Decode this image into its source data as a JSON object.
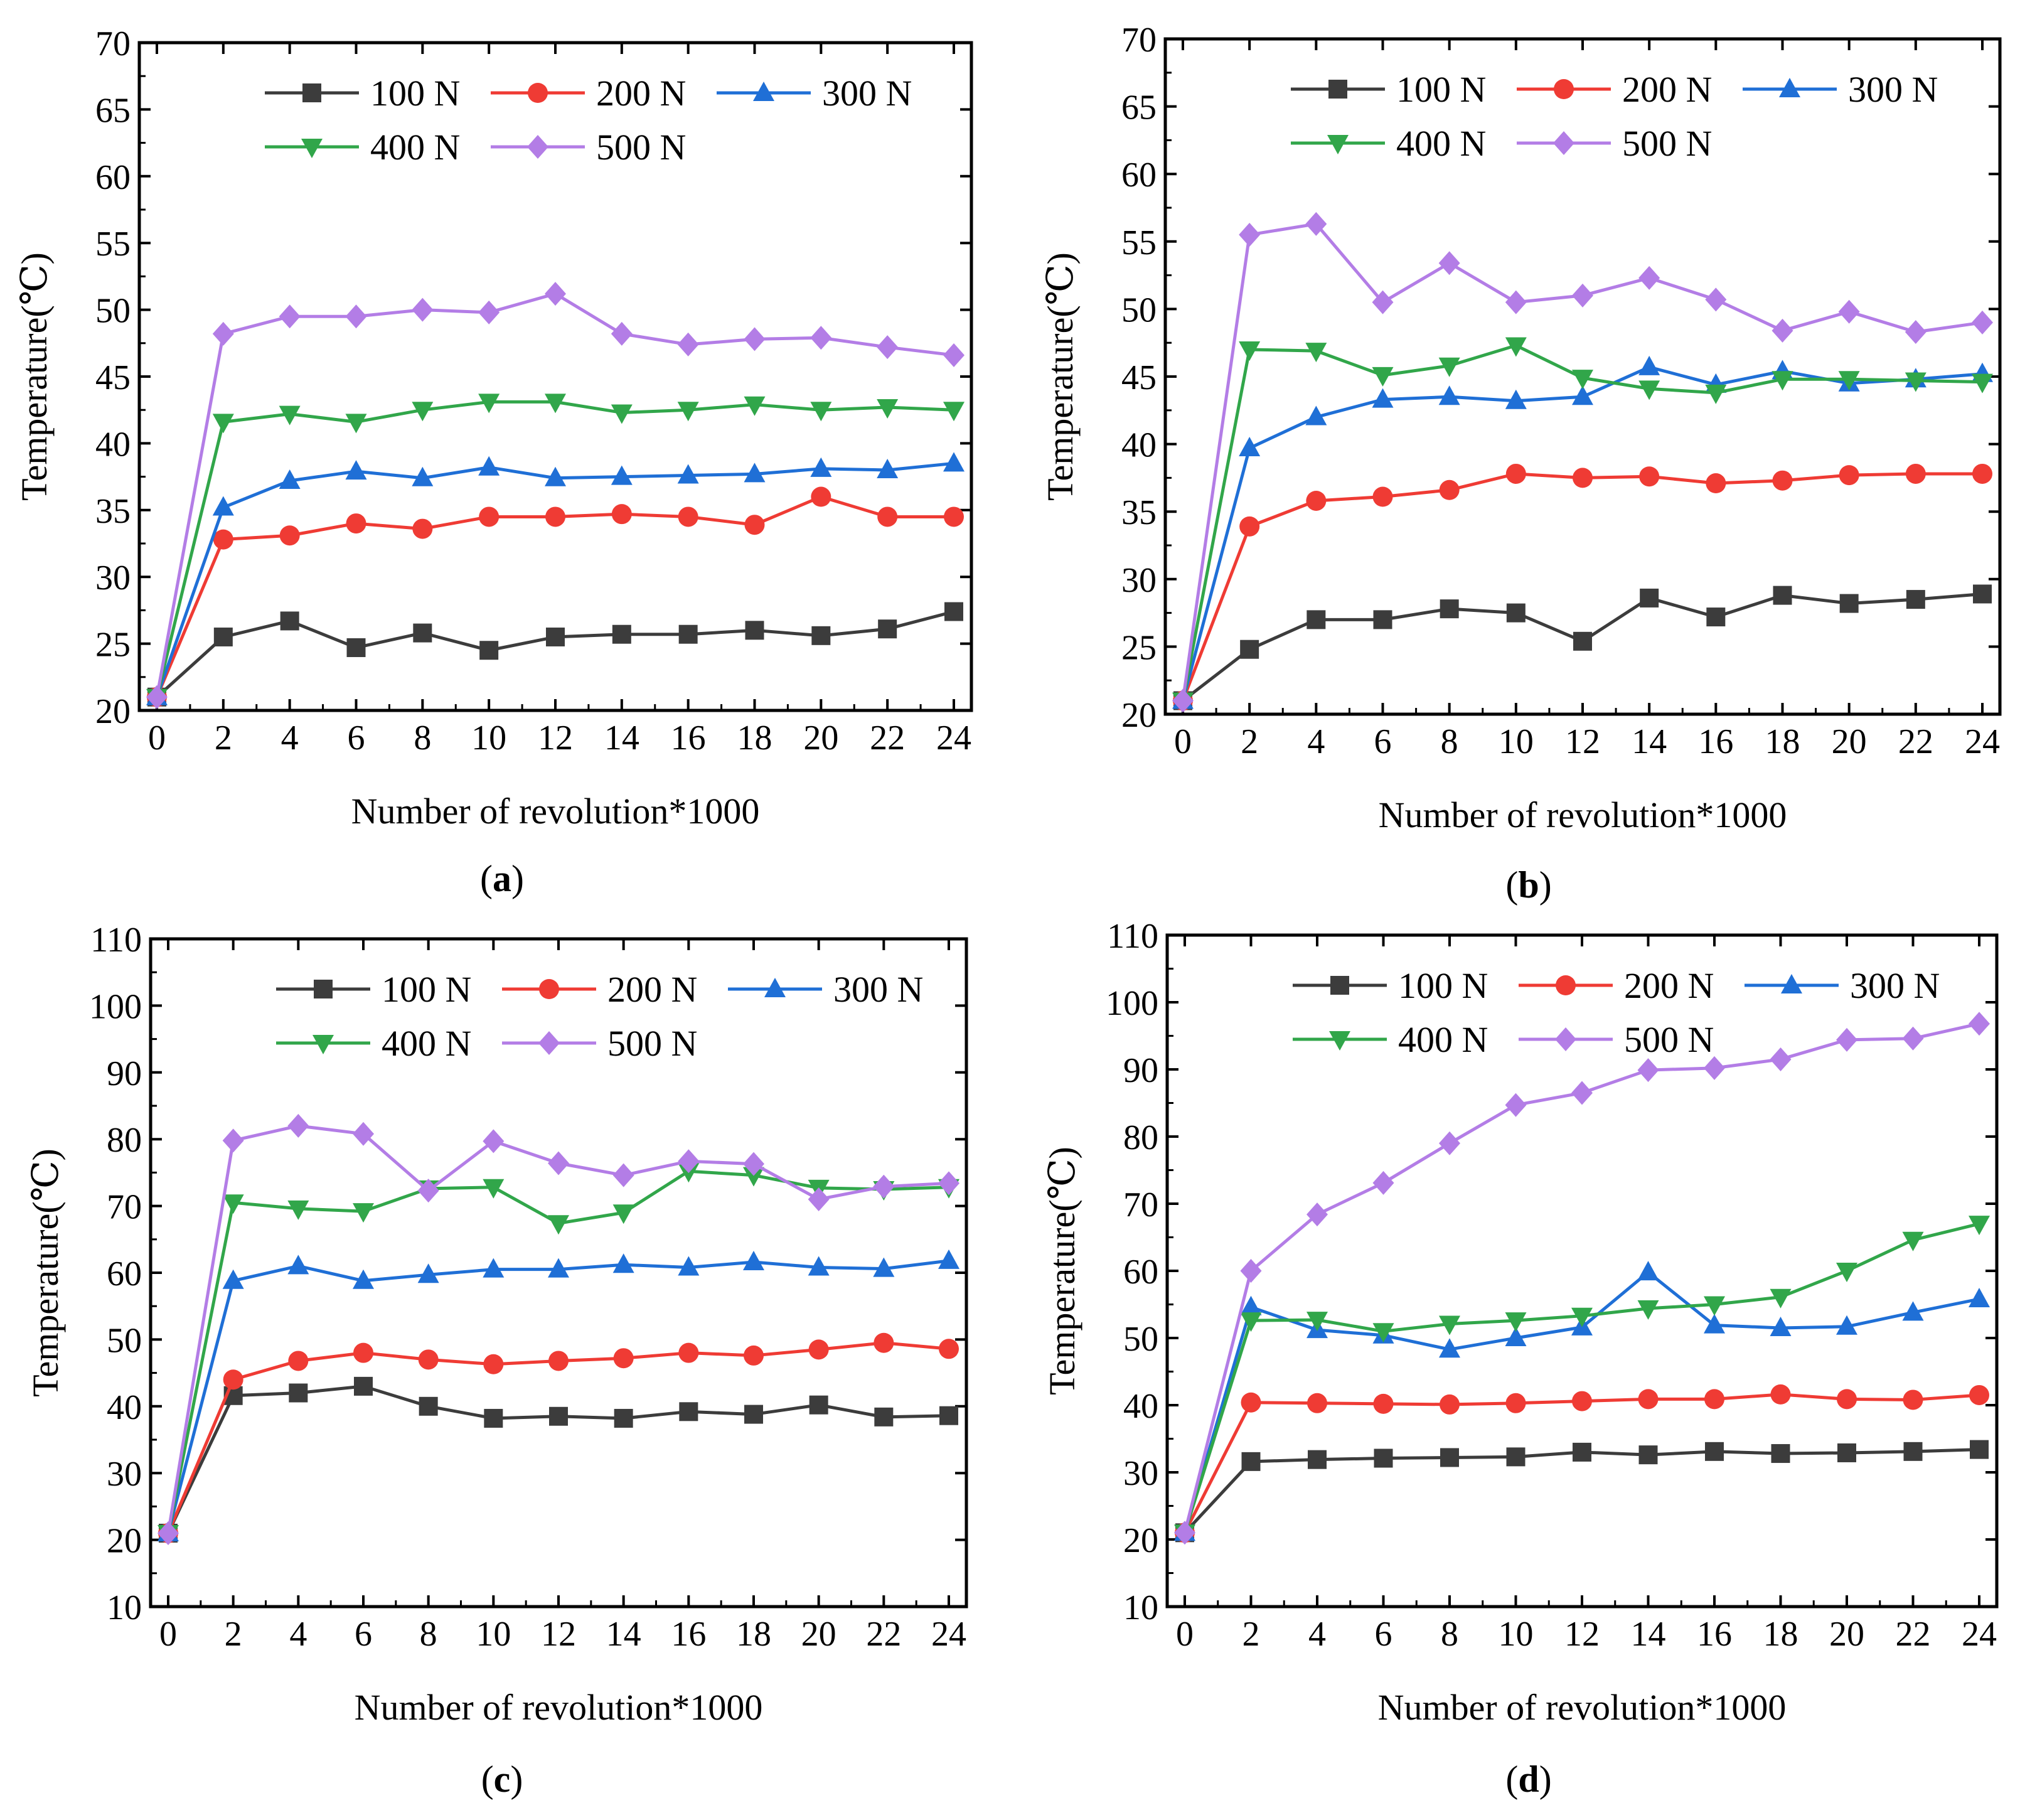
{
  "figure": {
    "colors": {
      "100 N": "#3c3c3c",
      "200 N": "#ef3b34",
      "300 N": "#1f6fd6",
      "400 N": "#31a64a",
      "500 N": "#b37de6"
    },
    "markers": {
      "100 N": "square",
      "200 N": "circle",
      "300 N": "triangle-up",
      "400 N": "triangle-down",
      "500 N": "diamond"
    }
  },
  "chart_data": [
    {
      "id": "a",
      "type": "line",
      "panel_label": "a",
      "xlabel": "Number of revolution*1000",
      "ylabel": "Temperature(℃)",
      "xlim": [
        0,
        24
      ],
      "ylim": [
        20,
        70
      ],
      "xticks": [
        0,
        2,
        4,
        6,
        8,
        10,
        12,
        14,
        16,
        18,
        20,
        22,
        24
      ],
      "yticks": [
        20,
        25,
        30,
        35,
        40,
        45,
        50,
        55,
        60,
        65,
        70
      ],
      "legend_position": "top-right",
      "x": [
        0,
        2,
        4,
        6,
        8,
        10,
        12,
        14,
        16,
        18,
        20,
        22,
        24
      ],
      "series": [
        {
          "name": "100 N",
          "values": [
            21.0,
            25.5,
            26.7,
            24.7,
            25.8,
            24.5,
            25.5,
            25.7,
            25.7,
            26.0,
            25.6,
            26.1,
            27.4
          ]
        },
        {
          "name": "200 N",
          "values": [
            21.0,
            32.8,
            33.1,
            34.0,
            33.6,
            34.5,
            34.5,
            34.7,
            34.5,
            33.9,
            36.0,
            34.5,
            34.5
          ]
        },
        {
          "name": "300 N",
          "values": [
            21.0,
            35.2,
            37.2,
            37.9,
            37.4,
            38.2,
            37.4,
            37.5,
            37.6,
            37.7,
            38.1,
            38.0,
            38.5
          ]
        },
        {
          "name": "400 N",
          "values": [
            21.0,
            41.6,
            42.2,
            41.6,
            42.5,
            43.1,
            43.1,
            42.3,
            42.5,
            42.9,
            42.5,
            42.7,
            42.5
          ]
        },
        {
          "name": "500 N",
          "values": [
            21.0,
            48.2,
            49.5,
            49.5,
            50.0,
            49.8,
            51.2,
            48.2,
            47.4,
            47.8,
            47.9,
            47.2,
            46.6
          ]
        }
      ]
    },
    {
      "id": "b",
      "type": "line",
      "panel_label": "b",
      "xlabel": "Number of revolution*1000",
      "ylabel": "Temperature(℃)",
      "xlim": [
        0,
        24
      ],
      "ylim": [
        20,
        70
      ],
      "xticks": [
        0,
        2,
        4,
        6,
        8,
        10,
        12,
        14,
        16,
        18,
        20,
        22,
        24
      ],
      "yticks": [
        20,
        25,
        30,
        35,
        40,
        45,
        50,
        55,
        60,
        65,
        70
      ],
      "legend_position": "top-right",
      "x": [
        0,
        2,
        4,
        6,
        8,
        10,
        12,
        14,
        16,
        18,
        20,
        22,
        24
      ],
      "series": [
        {
          "name": "100 N",
          "values": [
            21.0,
            24.8,
            27.0,
            27.0,
            27.8,
            27.5,
            25.4,
            28.6,
            27.2,
            28.8,
            28.2,
            28.5,
            28.9
          ]
        },
        {
          "name": "200 N",
          "values": [
            21.0,
            33.9,
            35.8,
            36.1,
            36.6,
            37.8,
            37.5,
            37.6,
            37.1,
            37.3,
            37.7,
            37.8,
            37.8
          ]
        },
        {
          "name": "300 N",
          "values": [
            21.0,
            39.7,
            42.0,
            43.3,
            43.5,
            43.2,
            43.5,
            45.7,
            44.4,
            45.4,
            44.5,
            44.8,
            45.2
          ]
        },
        {
          "name": "400 N",
          "values": [
            21.0,
            47.0,
            46.9,
            45.1,
            45.8,
            47.3,
            44.9,
            44.1,
            43.8,
            44.8,
            44.8,
            44.7,
            44.6
          ]
        },
        {
          "name": "500 N",
          "values": [
            21.0,
            55.5,
            56.3,
            50.5,
            53.4,
            50.5,
            51.0,
            52.3,
            50.7,
            48.4,
            49.8,
            48.3,
            49.0
          ]
        }
      ]
    },
    {
      "id": "c",
      "type": "line",
      "panel_label": "c",
      "xlabel": "Number of revolution*1000",
      "ylabel": "Temperature(℃)",
      "xlim": [
        0,
        24
      ],
      "ylim": [
        10,
        110
      ],
      "xticks": [
        0,
        2,
        4,
        6,
        8,
        10,
        12,
        14,
        16,
        18,
        20,
        22,
        24
      ],
      "yticks": [
        10,
        20,
        30,
        40,
        50,
        60,
        70,
        80,
        90,
        100,
        110
      ],
      "legend_position": "top-right",
      "x": [
        0,
        2,
        4,
        6,
        8,
        10,
        12,
        14,
        16,
        18,
        20,
        22,
        24
      ],
      "series": [
        {
          "name": "100 N",
          "values": [
            21.0,
            41.6,
            42.0,
            43.0,
            40.0,
            38.2,
            38.5,
            38.2,
            39.2,
            38.8,
            40.2,
            38.4,
            38.6
          ]
        },
        {
          "name": "200 N",
          "values": [
            21.0,
            44.0,
            46.8,
            48.0,
            47.0,
            46.3,
            46.8,
            47.2,
            48.0,
            47.6,
            48.5,
            49.5,
            48.6
          ]
        },
        {
          "name": "300 N",
          "values": [
            21.0,
            58.8,
            61.0,
            58.8,
            59.7,
            60.5,
            60.5,
            61.2,
            60.8,
            61.6,
            60.8,
            60.6,
            61.8
          ]
        },
        {
          "name": "400 N",
          "values": [
            21.0,
            70.5,
            69.6,
            69.2,
            72.6,
            72.8,
            67.4,
            69.0,
            75.2,
            74.6,
            72.7,
            72.5,
            72.8
          ]
        },
        {
          "name": "500 N",
          "values": [
            21.0,
            79.8,
            82.0,
            80.8,
            72.3,
            79.7,
            76.4,
            74.6,
            76.7,
            76.3,
            71.0,
            72.9,
            73.4
          ]
        }
      ]
    },
    {
      "id": "d",
      "type": "line",
      "panel_label": "d",
      "xlabel": "Number of revolution*1000",
      "ylabel": "Temperature(℃)",
      "xlim": [
        0,
        24
      ],
      "ylim": [
        10,
        110
      ],
      "xticks": [
        0,
        2,
        4,
        6,
        8,
        10,
        12,
        14,
        16,
        18,
        20,
        22,
        24
      ],
      "yticks": [
        10,
        20,
        30,
        40,
        50,
        60,
        70,
        80,
        90,
        100,
        110
      ],
      "legend_position": "top-right",
      "x": [
        0,
        2,
        4,
        6,
        8,
        10,
        12,
        14,
        16,
        18,
        20,
        22,
        24
      ],
      "series": [
        {
          "name": "100 N",
          "values": [
            21.0,
            31.6,
            31.9,
            32.1,
            32.2,
            32.3,
            33.0,
            32.6,
            33.1,
            32.8,
            32.9,
            33.1,
            33.4
          ]
        },
        {
          "name": "200 N",
          "values": [
            21.0,
            40.4,
            40.3,
            40.2,
            40.1,
            40.3,
            40.6,
            40.9,
            40.9,
            41.6,
            40.9,
            40.8,
            41.5
          ]
        },
        {
          "name": "300 N",
          "values": [
            21.0,
            54.6,
            51.2,
            50.4,
            48.3,
            50.0,
            51.6,
            59.8,
            51.9,
            51.5,
            51.7,
            53.8,
            55.8
          ]
        },
        {
          "name": "400 N",
          "values": [
            21.0,
            52.6,
            52.7,
            51.0,
            52.1,
            52.6,
            53.3,
            54.4,
            55.0,
            56.1,
            60.0,
            64.6,
            67.0
          ]
        },
        {
          "name": "500 N",
          "values": [
            21.0,
            60.0,
            68.4,
            73.1,
            79.0,
            84.7,
            86.5,
            89.9,
            90.2,
            91.5,
            94.4,
            94.6,
            96.8
          ]
        }
      ]
    }
  ]
}
